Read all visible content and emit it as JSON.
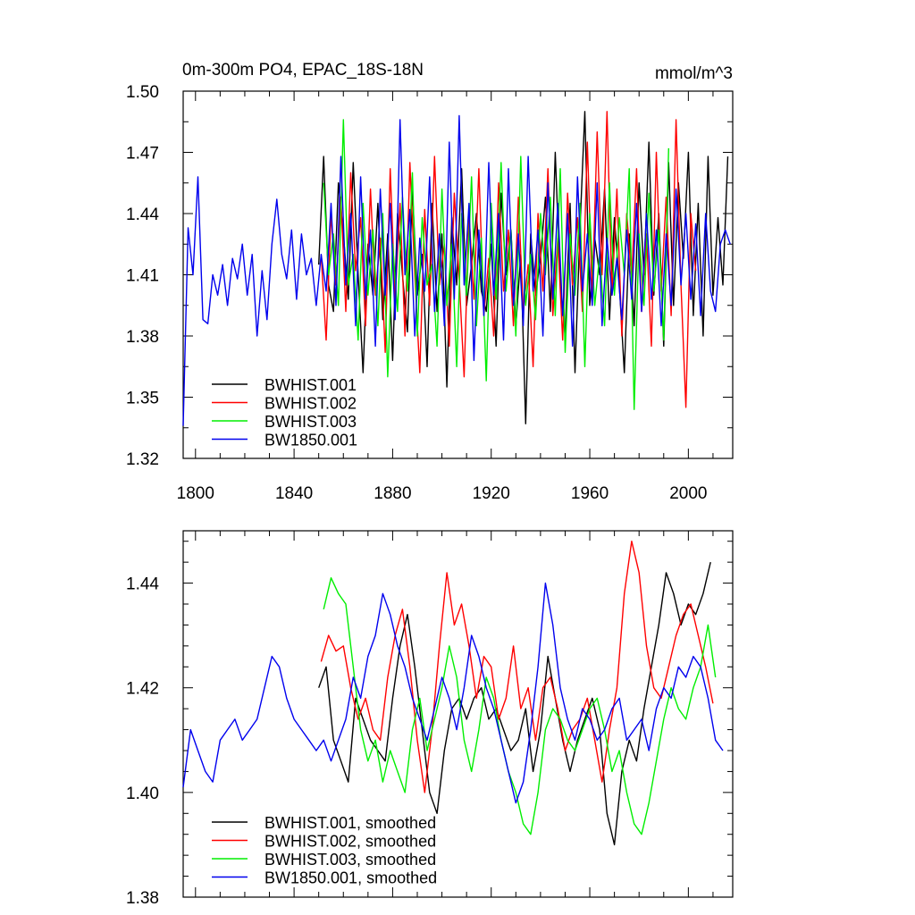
{
  "chart_data": [
    {
      "type": "line",
      "title": "0m-300m PO4, EPAC_18S-18N",
      "units_label": "mmol/m^3",
      "xlabel": "",
      "ylabel": "",
      "xlim": [
        1795,
        2018
      ],
      "ylim": [
        1.32,
        1.5
      ],
      "x_ticks": [
        1800,
        1840,
        1880,
        1920,
        1960,
        2000
      ],
      "x_tick_labels": [
        "1800",
        "1840",
        "1880",
        "1920",
        "1960",
        "2000"
      ],
      "y_ticks": [
        1.32,
        1.35,
        1.38,
        1.41,
        1.44,
        1.47,
        1.5
      ],
      "y_tick_labels": [
        "1.32",
        "1.35",
        "1.38",
        "1.41",
        "1.44",
        "1.47",
        "1.50"
      ],
      "legend_position": "bottom-left",
      "series": [
        {
          "name": "BWHIST.001",
          "color": "#000000",
          "x_start": 1850,
          "x_step": 2,
          "values": [
            1.415,
            1.468,
            1.405,
            1.392,
            1.455,
            1.43,
            1.398,
            1.465,
            1.41,
            1.362,
            1.425,
            1.4,
            1.445,
            1.388,
            1.43,
            1.368,
            1.44,
            1.41,
            1.382,
            1.452,
            1.4,
            1.42,
            1.365,
            1.445,
            1.392,
            1.43,
            1.355,
            1.438,
            1.405,
            1.462,
            1.395,
            1.415,
            1.44,
            1.402,
            1.392,
            1.425,
            1.375,
            1.45,
            1.41,
            1.432,
            1.385,
            1.42,
            1.337,
            1.43,
            1.4,
            1.418,
            1.448,
            1.392,
            1.47,
            1.405,
            1.38,
            1.445,
            1.362,
            1.432,
            1.49,
            1.395,
            1.428,
            1.41,
            1.452,
            1.388,
            1.438,
            1.405,
            1.362,
            1.43,
            1.385,
            1.455,
            1.41,
            1.475,
            1.4,
            1.44,
            1.375,
            1.465,
            1.395,
            1.455,
            1.418,
            1.47,
            1.39,
            1.445,
            1.38,
            1.468,
            1.4,
            1.438,
            1.405,
            1.468
          ]
        },
        {
          "name": "BWHIST.002",
          "color": "#ff0000",
          "x_start": 1851,
          "x_step": 2,
          "values": [
            1.42,
            1.378,
            1.44,
            1.405,
            1.448,
            1.392,
            1.46,
            1.412,
            1.438,
            1.385,
            1.452,
            1.4,
            1.428,
            1.372,
            1.462,
            1.398,
            1.445,
            1.38,
            1.465,
            1.41,
            1.362,
            1.442,
            1.395,
            1.468,
            1.405,
            1.425,
            1.375,
            1.45,
            1.408,
            1.36,
            1.44,
            1.398,
            1.462,
            1.39,
            1.418,
            1.38,
            1.455,
            1.402,
            1.432,
            1.385,
            1.448,
            1.392,
            1.415,
            1.365,
            1.44,
            1.402,
            1.462,
            1.39,
            1.428,
            1.378,
            1.45,
            1.405,
            1.438,
            1.392,
            1.475,
            1.4,
            1.48,
            1.41,
            1.49,
            1.4,
            1.452,
            1.38,
            1.44,
            1.408,
            1.462,
            1.392,
            1.43,
            1.375,
            1.47,
            1.402,
            1.448,
            1.39,
            1.486,
            1.405,
            1.345,
            1.44,
            1.412
          ]
        },
        {
          "name": "BWHIST.003",
          "color": "#00ee00",
          "x_start": 1852,
          "x_step": 2,
          "values": [
            1.455,
            1.41,
            1.43,
            1.395,
            1.486,
            1.405,
            1.42,
            1.378,
            1.445,
            1.4,
            1.432,
            1.385,
            1.44,
            1.36,
            1.425,
            1.392,
            1.448,
            1.402,
            1.46,
            1.38,
            1.438,
            1.405,
            1.415,
            1.375,
            1.452,
            1.395,
            1.425,
            1.365,
            1.44,
            1.4,
            1.458,
            1.385,
            1.428,
            1.358,
            1.445,
            1.398,
            1.465,
            1.402,
            1.432,
            1.38,
            1.468,
            1.395,
            1.42,
            1.388,
            1.44,
            1.41,
            1.448,
            1.39,
            1.462,
            1.372,
            1.43,
            1.4,
            1.445,
            1.365,
            1.44,
            1.395,
            1.42,
            1.385,
            1.455,
            1.4,
            1.438,
            1.41,
            1.462,
            1.344,
            1.43,
            1.395,
            1.45,
            1.402,
            1.432,
            1.378,
            1.472
          ]
        },
        {
          "name": "BW1850.001",
          "color": "#0000ee",
          "x_start": 1795,
          "x_step": 2,
          "values": [
            1.336,
            1.433,
            1.41,
            1.458,
            1.388,
            1.386,
            1.41,
            1.4,
            1.415,
            1.395,
            1.418,
            1.408,
            1.425,
            1.4,
            1.42,
            1.38,
            1.412,
            1.388,
            1.425,
            1.447,
            1.42,
            1.408,
            1.432,
            1.398,
            1.43,
            1.41,
            1.418,
            1.395,
            1.42,
            1.402,
            1.445,
            1.395,
            1.468,
            1.405,
            1.44,
            1.385,
            1.458,
            1.398,
            1.432,
            1.375,
            1.452,
            1.4,
            1.445,
            1.388,
            1.486,
            1.41,
            1.442,
            1.38,
            1.428,
            1.402,
            1.458,
            1.392,
            1.43,
            1.385,
            1.475,
            1.398,
            1.488,
            1.405,
            1.445,
            1.368,
            1.432,
            1.39,
            1.465,
            1.4,
            1.44,
            1.378,
            1.462,
            1.395,
            1.43,
            1.385,
            1.468,
            1.402,
            1.432,
            1.38,
            1.455,
            1.398,
            1.445,
            1.39,
            1.44,
            1.375,
            1.458,
            1.402,
            1.43,
            1.395,
            1.455,
            1.385,
            1.428,
            1.4,
            1.418,
            1.388,
            1.432,
            1.398,
            1.445,
            1.392,
            1.44,
            1.398,
            1.432,
            1.385,
            1.43,
            1.395,
            1.452,
            1.405,
            1.44,
            1.398,
            1.435,
            1.39,
            1.44,
            1.402,
            1.392,
            1.425,
            1.432,
            1.425
          ]
        }
      ]
    },
    {
      "type": "line",
      "title": "",
      "xlabel": "",
      "ylabel": "",
      "xlim": [
        1795,
        2018
      ],
      "ylim": [
        1.38,
        1.45
      ],
      "x_ticks": [
        1800,
        1840,
        1880,
        1920,
        1960,
        2000
      ],
      "y_ticks": [
        1.38,
        1.4,
        1.42,
        1.44
      ],
      "y_tick_labels": [
        "1.38",
        "1.40",
        "1.42",
        "1.44"
      ],
      "legend_position": "bottom-left",
      "series": [
        {
          "name": "BWHIST.001, smoothed",
          "color": "#000000",
          "x": [
            1850,
            1853,
            1856,
            1859,
            1862,
            1865,
            1868,
            1871,
            1874,
            1877,
            1880,
            1883,
            1886,
            1889,
            1892,
            1895,
            1898,
            1901,
            1904,
            1907,
            1910,
            1913,
            1916,
            1919,
            1922,
            1925,
            1928,
            1931,
            1934,
            1937,
            1940,
            1943,
            1946,
            1949,
            1952,
            1955,
            1958,
            1961,
            1964,
            1967,
            1970,
            1973,
            1976,
            1979,
            1982,
            1985,
            1988,
            1991,
            1994,
            1997,
            2000,
            2003,
            2006,
            2009
          ],
          "values": [
            1.42,
            1.424,
            1.41,
            1.406,
            1.402,
            1.418,
            1.414,
            1.41,
            1.408,
            1.406,
            1.418,
            1.428,
            1.434,
            1.424,
            1.412,
            1.4,
            1.396,
            1.408,
            1.416,
            1.418,
            1.414,
            1.418,
            1.42,
            1.414,
            1.416,
            1.412,
            1.408,
            1.41,
            1.416,
            1.404,
            1.412,
            1.426,
            1.418,
            1.41,
            1.404,
            1.41,
            1.414,
            1.418,
            1.412,
            1.396,
            1.39,
            1.404,
            1.41,
            1.406,
            1.416,
            1.424,
            1.432,
            1.442,
            1.438,
            1.432,
            1.436,
            1.434,
            1.438,
            1.444
          ]
        },
        {
          "name": "BWHIST.002, smoothed",
          "color": "#ff0000",
          "x": [
            1851,
            1854,
            1857,
            1860,
            1863,
            1866,
            1869,
            1872,
            1875,
            1878,
            1881,
            1884,
            1887,
            1890,
            1893,
            1896,
            1899,
            1902,
            1905,
            1908,
            1911,
            1914,
            1917,
            1920,
            1923,
            1926,
            1929,
            1932,
            1935,
            1938,
            1941,
            1944,
            1947,
            1950,
            1953,
            1956,
            1959,
            1962,
            1965,
            1968,
            1971,
            1974,
            1977,
            1980,
            1983,
            1986,
            1989,
            1992,
            1995,
            1998,
            2001,
            2004,
            2007,
            2010
          ],
          "values": [
            1.425,
            1.43,
            1.427,
            1.428,
            1.42,
            1.414,
            1.418,
            1.412,
            1.41,
            1.422,
            1.43,
            1.435,
            1.424,
            1.41,
            1.4,
            1.412,
            1.428,
            1.442,
            1.432,
            1.436,
            1.428,
            1.418,
            1.426,
            1.424,
            1.414,
            1.418,
            1.428,
            1.416,
            1.42,
            1.41,
            1.42,
            1.422,
            1.416,
            1.408,
            1.412,
            1.414,
            1.418,
            1.41,
            1.402,
            1.412,
            1.42,
            1.438,
            1.448,
            1.442,
            1.428,
            1.42,
            1.418,
            1.424,
            1.43,
            1.434,
            1.436,
            1.43,
            1.424,
            1.417
          ]
        },
        {
          "name": "BWHIST.003, smoothed",
          "color": "#00ee00",
          "x": [
            1852,
            1855,
            1858,
            1861,
            1864,
            1867,
            1870,
            1873,
            1876,
            1879,
            1882,
            1885,
            1888,
            1891,
            1894,
            1897,
            1900,
            1903,
            1906,
            1909,
            1912,
            1915,
            1918,
            1921,
            1924,
            1927,
            1930,
            1933,
            1936,
            1939,
            1942,
            1945,
            1948,
            1951,
            1954,
            1957,
            1960,
            1963,
            1966,
            1969,
            1972,
            1975,
            1978,
            1981,
            1984,
            1987,
            1990,
            1993,
            1996,
            1999,
            2002,
            2005,
            2008,
            2011
          ],
          "values": [
            1.435,
            1.441,
            1.438,
            1.436,
            1.424,
            1.412,
            1.406,
            1.41,
            1.402,
            1.408,
            1.404,
            1.4,
            1.412,
            1.418,
            1.408,
            1.414,
            1.42,
            1.428,
            1.422,
            1.41,
            1.404,
            1.412,
            1.422,
            1.418,
            1.41,
            1.404,
            1.4,
            1.394,
            1.392,
            1.4,
            1.412,
            1.416,
            1.414,
            1.41,
            1.408,
            1.412,
            1.416,
            1.418,
            1.412,
            1.404,
            1.408,
            1.4,
            1.394,
            1.392,
            1.398,
            1.406,
            1.414,
            1.42,
            1.416,
            1.414,
            1.42,
            1.424,
            1.432,
            1.422
          ]
        },
        {
          "name": "BW1850.001, smoothed",
          "color": "#0000ee",
          "x": [
            1795,
            1798,
            1801,
            1804,
            1807,
            1810,
            1813,
            1816,
            1819,
            1822,
            1825,
            1828,
            1831,
            1834,
            1837,
            1840,
            1843,
            1846,
            1849,
            1852,
            1855,
            1858,
            1861,
            1864,
            1867,
            1870,
            1873,
            1876,
            1879,
            1882,
            1885,
            1888,
            1891,
            1894,
            1897,
            1900,
            1903,
            1906,
            1909,
            1912,
            1915,
            1918,
            1921,
            1924,
            1927,
            1930,
            1933,
            1936,
            1939,
            1942,
            1945,
            1948,
            1951,
            1954,
            1957,
            1960,
            1963,
            1966,
            1969,
            1972,
            1975,
            1978,
            1981,
            1984,
            1987,
            1990,
            1993,
            1996,
            1999,
            2002,
            2005,
            2008,
            2011,
            2014
          ],
          "values": [
            1.401,
            1.412,
            1.408,
            1.404,
            1.402,
            1.41,
            1.412,
            1.414,
            1.41,
            1.412,
            1.414,
            1.42,
            1.426,
            1.424,
            1.418,
            1.414,
            1.412,
            1.41,
            1.408,
            1.41,
            1.406,
            1.41,
            1.414,
            1.422,
            1.418,
            1.426,
            1.43,
            1.438,
            1.434,
            1.428,
            1.424,
            1.418,
            1.414,
            1.41,
            1.416,
            1.422,
            1.418,
            1.412,
            1.42,
            1.43,
            1.426,
            1.42,
            1.416,
            1.41,
            1.404,
            1.398,
            1.402,
            1.412,
            1.424,
            1.44,
            1.432,
            1.42,
            1.414,
            1.41,
            1.416,
            1.414,
            1.41,
            1.412,
            1.416,
            1.418,
            1.41,
            1.412,
            1.414,
            1.408,
            1.416,
            1.42,
            1.418,
            1.424,
            1.422,
            1.426,
            1.424,
            1.418,
            1.41,
            1.408
          ]
        }
      ]
    }
  ]
}
